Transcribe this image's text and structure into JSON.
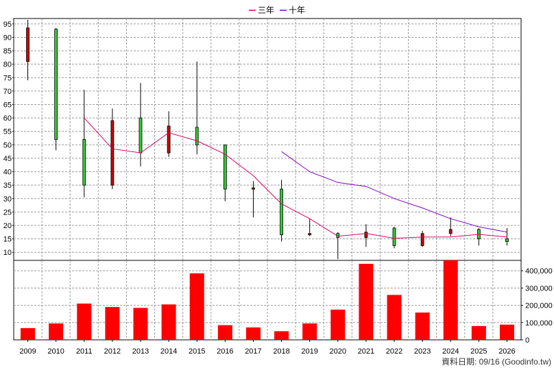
{
  "legend": {
    "items": [
      {
        "label": "三年",
        "color": "#e0006a"
      },
      {
        "label": "十年",
        "color": "#8000c0"
      }
    ]
  },
  "source_note": "資料日期: 09/16  (Goodinfo.tw)",
  "colors": {
    "up_candle": "#cc0000",
    "down_candle": "#33cc33",
    "volume_bar": "#ff0000",
    "frame": "#000000"
  },
  "chart_data": [
    {
      "type": "candlestick",
      "title": "",
      "categories": [
        "2009",
        "2010",
        "2011",
        "2012",
        "2013",
        "2014",
        "2015",
        "2016",
        "2017",
        "2018",
        "2019",
        "2020",
        "2021",
        "2022",
        "2023",
        "2024",
        "2025",
        "2026"
      ],
      "ylim": [
        7,
        97
      ],
      "y_ticks": [
        10,
        15,
        20,
        25,
        30,
        35,
        40,
        45,
        50,
        55,
        60,
        65,
        70,
        75,
        80,
        85,
        90,
        95
      ],
      "grid": true,
      "legend_position": "top-center",
      "candles": [
        {
          "x": "2009",
          "open": 81,
          "close": 93.5,
          "high": 96.5,
          "low": 74
        },
        {
          "x": "2010",
          "open": 93,
          "close": 52,
          "high": 93.5,
          "low": 48
        },
        {
          "x": "2011",
          "open": 52,
          "close": 35,
          "high": 70.5,
          "low": 30.5
        },
        {
          "x": "2012",
          "open": 35,
          "close": 59,
          "high": 63.5,
          "low": 33.5
        },
        {
          "x": "2013",
          "open": 60,
          "close": 47,
          "high": 73,
          "low": 42
        },
        {
          "x": "2014",
          "open": 47,
          "close": 57,
          "high": 62.5,
          "low": 45.5
        },
        {
          "x": "2015",
          "open": 56.5,
          "close": 50,
          "high": 81,
          "low": 46.5
        },
        {
          "x": "2016",
          "open": 50,
          "close": 33.5,
          "high": 50,
          "low": 29
        },
        {
          "x": "2017",
          "open": 34,
          "close": 34,
          "high": 36.5,
          "low": 23
        },
        {
          "x": "2018",
          "open": 33.5,
          "close": 16.5,
          "high": 37,
          "low": 14
        },
        {
          "x": "2019",
          "open": 16.5,
          "close": 17,
          "high": 22.5,
          "low": 16
        },
        {
          "x": "2020",
          "open": 17,
          "close": 15.5,
          "high": 17.5,
          "low": 7.5
        },
        {
          "x": "2021",
          "open": 15.5,
          "close": 17.5,
          "high": 20.5,
          "low": 12
        },
        {
          "x": "2022",
          "open": 19,
          "close": 12.5,
          "high": 19.5,
          "low": 11.5
        },
        {
          "x": "2023",
          "open": 12.5,
          "close": 17,
          "high": 18,
          "low": 12
        },
        {
          "x": "2024",
          "open": 17,
          "close": 18.5,
          "high": 23,
          "low": 16
        },
        {
          "x": "2025",
          "open": 18.5,
          "close": 15,
          "high": 19,
          "low": 12.5
        },
        {
          "x": "2026",
          "open": 15,
          "close": 14,
          "high": 19,
          "low": 12.5
        }
      ],
      "series": [
        {
          "name": "三年",
          "x": [
            "2011",
            "2012",
            "2013",
            "2014",
            "2015",
            "2016",
            "2017",
            "2018",
            "2019",
            "2020",
            "2021",
            "2022",
            "2023",
            "2024",
            "2025",
            "2026"
          ],
          "values": [
            60,
            48.5,
            47,
            54.5,
            51.5,
            46.5,
            38.5,
            28,
            22.5,
            16,
            17,
            15.2,
            15.7,
            15.7,
            16.7,
            15.7
          ]
        },
        {
          "name": "十年",
          "x": [
            "2018",
            "2019",
            "2020",
            "2021",
            "2022",
            "2023",
            "2024",
            "2025",
            "2026"
          ],
          "values": [
            47.5,
            40,
            36,
            34.5,
            30,
            26.5,
            22.5,
            19.5,
            17.5
          ]
        }
      ]
    },
    {
      "type": "bar",
      "title": "",
      "categories": [
        "2009",
        "2010",
        "2011",
        "2012",
        "2013",
        "2014",
        "2015",
        "2016",
        "2017",
        "2018",
        "2019",
        "2020",
        "2021",
        "2022",
        "2023",
        "2024",
        "2025",
        "2026"
      ],
      "values": [
        68000,
        95000,
        210000,
        190000,
        185000,
        205000,
        385000,
        85000,
        72000,
        50000,
        95000,
        175000,
        440000,
        260000,
        158000,
        460000,
        80000,
        88000
      ],
      "ylim": [
        0,
        460000
      ],
      "y_ticks": [
        0,
        100000,
        200000,
        300000,
        400000
      ],
      "y_tick_labels": [
        "0",
        "100,000",
        "200,000",
        "300,000",
        "400,000"
      ],
      "grid": true
    }
  ]
}
